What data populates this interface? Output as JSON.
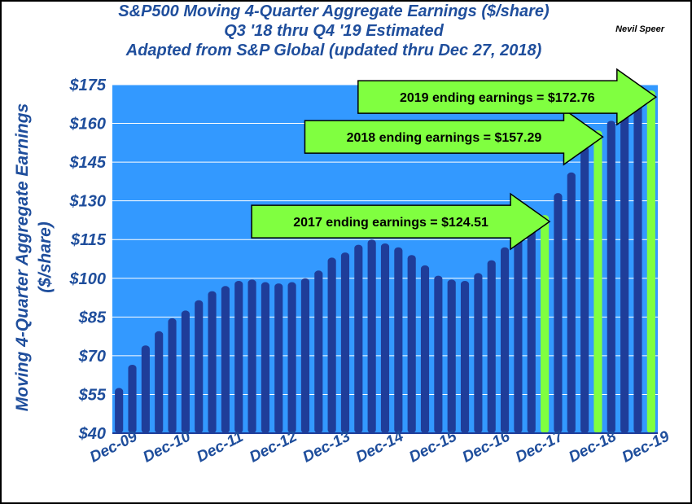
{
  "titles": {
    "line1": "S&P500 Moving 4-Quarter Aggregate Earnings ($/share)",
    "line2": "Q3 '18 thru Q4 '19 Estimated",
    "line3": "Adapted from S&P Global (updated thru Dec 27, 2018)"
  },
  "author": "Nevil Speer",
  "colors": {
    "plot_bg": "#3399ff",
    "bar": "#1f3d99",
    "highlight": "#80ff40",
    "title": "#1f4e9c"
  },
  "chart_data": {
    "type": "bar",
    "title": "S&P500 Moving 4-Quarter Aggregate Earnings ($/share)",
    "ylabel": "Moving 4-Quarter Aggregate Earnings ($/share)",
    "ylabel_lines": [
      "Moving 4-Quarter Aggregate Earnings",
      "($/share)"
    ],
    "ylim": [
      40,
      175
    ],
    "yticks": [
      40,
      55,
      70,
      85,
      100,
      115,
      130,
      145,
      160,
      175
    ],
    "ytick_labels": [
      "$40",
      "$55",
      "$70",
      "$85",
      "$100",
      "$115",
      "$130",
      "$145",
      "$160",
      "$175"
    ],
    "xtick_labels": [
      "Dec-09",
      "Dec-10",
      "Dec-11",
      "Dec-12",
      "Dec-13",
      "Dec-14",
      "Dec-15",
      "Dec-16",
      "Dec-17",
      "Dec-18",
      "Dec-19"
    ],
    "xtick_indices": [
      0,
      4,
      8,
      12,
      16,
      20,
      24,
      28,
      32,
      36,
      40
    ],
    "grid": true,
    "values": [
      57.5,
      66.5,
      74,
      79.5,
      84.5,
      87.5,
      91.5,
      95,
      97,
      99,
      99.5,
      98.5,
      98,
      98.5,
      100,
      103,
      108,
      110,
      113,
      115,
      113.5,
      112,
      109,
      105,
      101,
      99.5,
      99,
      102,
      107,
      112,
      117,
      119.5,
      124.51,
      133,
      141,
      151,
      157.29,
      161,
      165,
      168.5,
      172.76
    ],
    "highlight_indices": [
      32,
      36,
      40
    ],
    "annotations": [
      {
        "text": "2017 ending earnings = $124.51",
        "bar": 32
      },
      {
        "text": "2018 ending earnings = $157.29",
        "bar": 36
      },
      {
        "text": "2019 ending earnings = $172.76",
        "bar": 40
      }
    ]
  }
}
